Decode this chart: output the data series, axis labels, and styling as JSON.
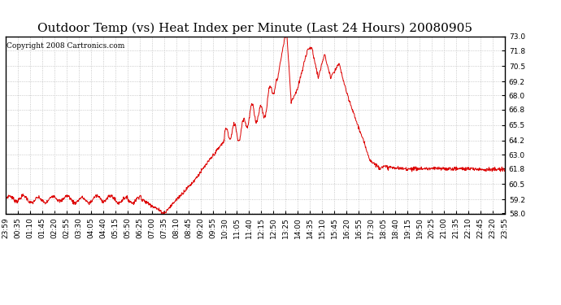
{
  "title": "Outdoor Temp (vs) Heat Index per Minute (Last 24 Hours) 20080905",
  "copyright": "Copyright 2008 Cartronics.com",
  "line_color": "#dd0000",
  "bg_color": "#ffffff",
  "plot_bg_color": "#ffffff",
  "grid_color": "#bbbbbb",
  "ylim": [
    58.0,
    73.0
  ],
  "yticks": [
    58.0,
    59.2,
    60.5,
    61.8,
    63.0,
    64.2,
    65.5,
    66.8,
    68.0,
    69.2,
    70.5,
    71.8,
    73.0
  ],
  "xtick_labels": [
    "23:59",
    "00:35",
    "01:10",
    "01:45",
    "02:20",
    "02:55",
    "03:30",
    "04:05",
    "04:40",
    "05:15",
    "05:50",
    "06:25",
    "07:00",
    "07:35",
    "08:10",
    "08:45",
    "09:20",
    "09:55",
    "10:30",
    "11:05",
    "11:40",
    "12:15",
    "12:50",
    "13:25",
    "14:00",
    "14:35",
    "15:10",
    "15:45",
    "16:20",
    "16:55",
    "17:30",
    "18:05",
    "18:40",
    "19:15",
    "19:50",
    "20:25",
    "21:00",
    "21:35",
    "22:10",
    "22:45",
    "23:20",
    "23:55"
  ],
  "title_fontsize": 11,
  "copyright_fontsize": 6.5,
  "tick_fontsize": 6.5
}
